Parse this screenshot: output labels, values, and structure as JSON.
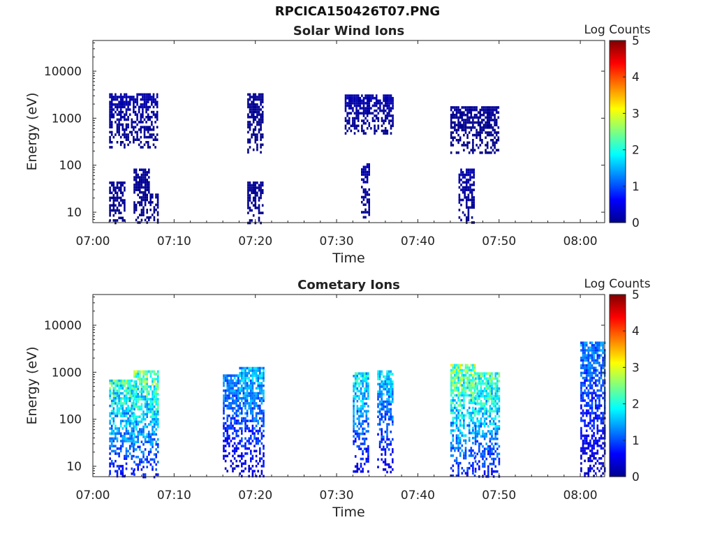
{
  "figure": {
    "title": "RPCICA150426T07.PNG"
  },
  "chart_data": [
    {
      "type": "heatmap",
      "title": "Solar Wind Ions",
      "xlabel": "Time",
      "ylabel": "Energy (eV)",
      "x_scale": "time",
      "y_scale": "log",
      "xlim": [
        "07:00",
        "08:03"
      ],
      "ylim": [
        6,
        45000
      ],
      "x_ticks": [
        "07:00",
        "07:10",
        "07:20",
        "07:30",
        "07:40",
        "07:50",
        "08:00"
      ],
      "y_ticks": [
        "10",
        "100",
        "1000",
        "10000"
      ],
      "colorbar": {
        "label": "Log Counts",
        "min": 0,
        "max": 5,
        "ticks": [
          "0",
          "1",
          "2",
          "3",
          "4",
          "5"
        ],
        "colormap": "jet"
      },
      "bursts": [
        {
          "t0": "07:02",
          "t1": "07:04",
          "e_low": 6,
          "e_high": 45,
          "log_counts": 0.1
        },
        {
          "t0": "07:05",
          "t1": "07:07",
          "e_low": 6,
          "e_high": 85,
          "log_counts": 0.1
        },
        {
          "t0": "07:07",
          "t1": "07:08",
          "e_low": 6,
          "e_high": 25,
          "log_counts": 0.1
        },
        {
          "t0": "07:02",
          "t1": "07:08",
          "e_low": 250,
          "e_high": 3400,
          "log_counts": 0.2
        },
        {
          "t0": "07:19",
          "t1": "07:21",
          "e_low": 6,
          "e_high": 45,
          "log_counts": 0.1
        },
        {
          "t0": "07:19",
          "t1": "07:21",
          "e_low": 200,
          "e_high": 3400,
          "log_counts": 0.1
        },
        {
          "t0": "07:33",
          "t1": "07:34",
          "e_low": 6,
          "e_high": 110,
          "log_counts": 0.2
        },
        {
          "t0": "07:31",
          "t1": "07:37",
          "e_low": 450,
          "e_high": 3200,
          "log_counts": 0.2
        },
        {
          "t0": "07:45",
          "t1": "07:47",
          "e_low": 6,
          "e_high": 85,
          "log_counts": 0.2
        },
        {
          "t0": "07:44",
          "t1": "07:50",
          "e_low": 180,
          "e_high": 1800,
          "log_counts": 0.1
        }
      ]
    },
    {
      "type": "heatmap",
      "title": "Cometary Ions",
      "xlabel": "Time",
      "ylabel": "Energy (eV)",
      "x_scale": "time",
      "y_scale": "log",
      "xlim": [
        "07:00",
        "08:03"
      ],
      "ylim": [
        6,
        45000
      ],
      "x_ticks": [
        "07:00",
        "07:10",
        "07:20",
        "07:30",
        "07:40",
        "07:50",
        "08:00"
      ],
      "y_ticks": [
        "10",
        "100",
        "1000",
        "10000"
      ],
      "colorbar": {
        "label": "Log Counts",
        "min": 0,
        "max": 5,
        "ticks": [
          "0",
          "1",
          "2",
          "3",
          "4",
          "5"
        ],
        "colormap": "jet"
      },
      "bursts": [
        {
          "t0": "07:02",
          "t1": "07:05",
          "e_low": 6,
          "e_high": 700,
          "log_counts": 1.9
        },
        {
          "t0": "07:05",
          "t1": "07:08",
          "e_low": 6,
          "e_high": 1100,
          "log_counts": 2.1
        },
        {
          "t0": "07:16",
          "t1": "07:18",
          "e_low": 8,
          "e_high": 900,
          "log_counts": 1.2
        },
        {
          "t0": "07:18",
          "t1": "07:21",
          "e_low": 6,
          "e_high": 1300,
          "log_counts": 1.4
        },
        {
          "t0": "07:32",
          "t1": "07:34",
          "e_low": 8,
          "e_high": 1000,
          "log_counts": 1.6
        },
        {
          "t0": "07:35",
          "t1": "07:37",
          "e_low": 8,
          "e_high": 1100,
          "log_counts": 1.5
        },
        {
          "t0": "07:44",
          "t1": "07:47",
          "e_low": 6,
          "e_high": 1500,
          "log_counts": 2.2
        },
        {
          "t0": "07:47",
          "t1": "07:50",
          "e_low": 6,
          "e_high": 1000,
          "log_counts": 2.0
        },
        {
          "t0": "08:00",
          "t1": "08:03",
          "e_low": 6,
          "e_high": 4500,
          "log_counts": 1.1
        }
      ]
    }
  ]
}
